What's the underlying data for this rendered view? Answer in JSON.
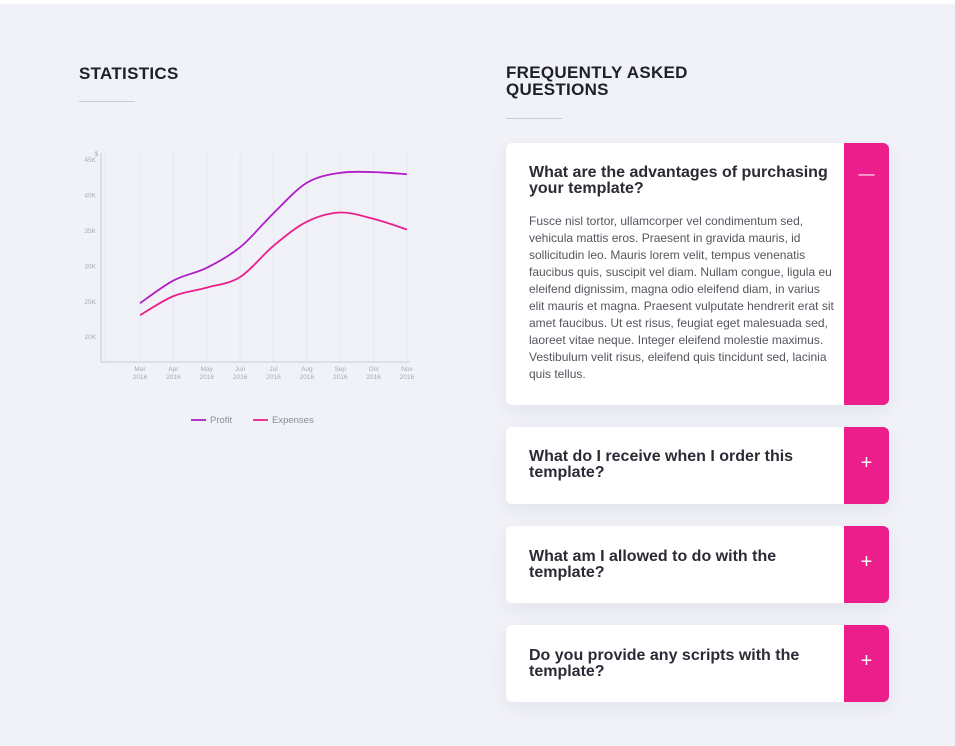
{
  "stats": {
    "title": "STATISTICS"
  },
  "chart_data": {
    "type": "line",
    "categories": [
      "Mar 2016",
      "Apr 2016",
      "May 2016",
      "Jun 2016",
      "Jul 2016",
      "Aug 2016",
      "Sep 2016",
      "Oct 2016",
      "Nov 2016"
    ],
    "x_tick_month": [
      "Mar",
      "Apr",
      "May",
      "Jun",
      "Jul",
      "Aug",
      "Sep",
      "Oct",
      "Nov"
    ],
    "x_tick_year": [
      "2016",
      "2016",
      "2016",
      "2016",
      "2016",
      "2016",
      "2016",
      "2016",
      "2016"
    ],
    "y_unit": "$",
    "y_ticks": [
      "20K",
      "25K",
      "30K",
      "35K",
      "40K",
      "45K"
    ],
    "y_tick_values": [
      20000,
      25000,
      30000,
      35000,
      40000,
      45000
    ],
    "ylim": [
      16500,
      46000
    ],
    "series": [
      {
        "name": "Profit",
        "color": "#b01cc8",
        "values": [
          24800,
          28000,
          29800,
          32700,
          37500,
          41800,
          43200,
          43300,
          43000
        ]
      },
      {
        "name": "Expenses",
        "color": "#ec1e8c",
        "values": [
          23100,
          25800,
          27000,
          28500,
          32900,
          36300,
          37600,
          36700,
          35200
        ]
      }
    ],
    "legend": "bottom",
    "grid": true
  },
  "faq": {
    "title": "FREQUENTLY ASKED QUESTIONS",
    "items": [
      {
        "question": "What are the advantages of purchasing your template?",
        "answer": "Fusce nisl tortor, ullamcorper vel condimentum sed, vehicula mattis eros. Praesent in gravida mauris, id sollicitudin leo. Mauris lorem velit, tempus venenatis faucibus quis, suscipit vel diam. Nullam congue, ligula eu eleifend dignissim, magna odio eleifend diam, in varius elit mauris et magna. Praesent vulputate hendrerit erat sit amet faucibus. Ut est risus, feugiat eget malesuada sed, laoreet vitae neque. Integer eleifend molestie maximus. Vestibulum velit risus, eleifend quis tincidunt sed, lacinia quis tellus.",
        "toggle": "—",
        "expanded": true
      },
      {
        "question": "What do I receive when I order this template?",
        "toggle": "+",
        "expanded": false
      },
      {
        "question": "What am I allowed to do with the template?",
        "toggle": "+",
        "expanded": false
      },
      {
        "question": "Do you provide any scripts with the template?",
        "toggle": "+",
        "expanded": false
      }
    ]
  }
}
